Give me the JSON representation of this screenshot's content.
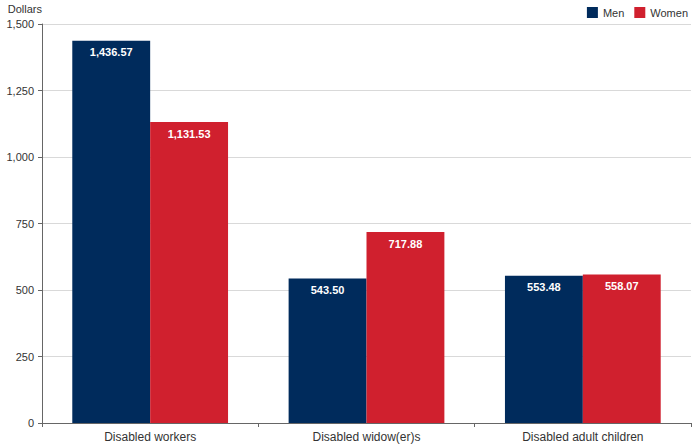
{
  "chart_data": {
    "type": "bar",
    "ylabel": "Dollars",
    "categories": [
      "Disabled workers",
      "Disabled widow(er)s",
      "Disabled adult children"
    ],
    "series": [
      {
        "name": "Men",
        "color": "#002b5c",
        "values": [
          1436.57,
          543.5,
          553.48
        ],
        "value_labels": [
          "1,436.57",
          "543.50",
          "553.48"
        ]
      },
      {
        "name": "Women",
        "color": "#d0202e",
        "values": [
          1131.53,
          717.88,
          558.07
        ],
        "value_labels": [
          "1,131.53",
          "717.88",
          "558.07"
        ]
      }
    ],
    "ylim": [
      0,
      1500
    ],
    "yticks": [
      0,
      250,
      500,
      750,
      {
        "value": 1000,
        "label": "1,000"
      },
      {
        "value": 1250,
        "label": "1,250"
      },
      {
        "value": 1500,
        "label": "1,500"
      }
    ],
    "grid": true,
    "legend": "top-right",
    "data_labels": true
  }
}
